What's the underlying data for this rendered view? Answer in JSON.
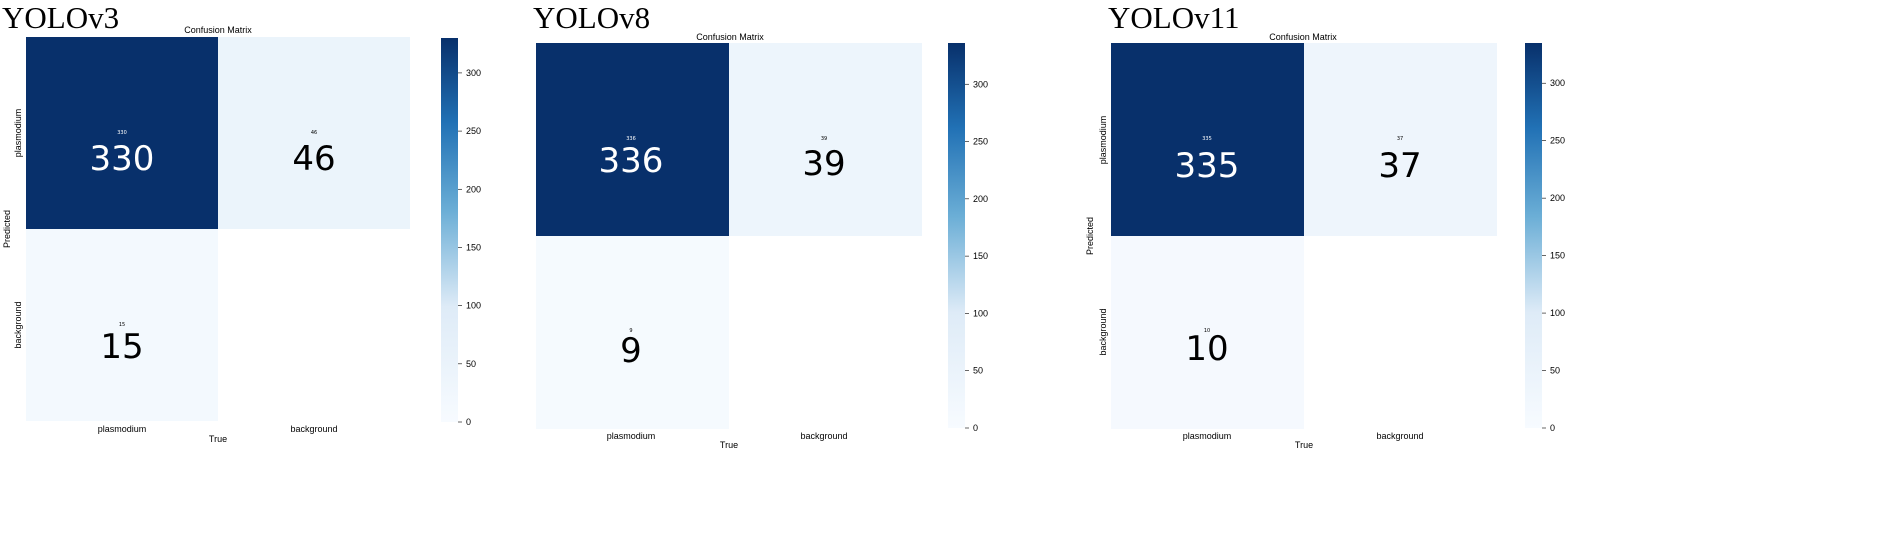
{
  "colors": {
    "low": "#f7fbff",
    "mid_low": "#deebf7",
    "mid": "#6baed6",
    "mid_high": "#2171b5",
    "high": "#08306b",
    "text_light": "#ffffff",
    "text_dark": "#000000"
  },
  "chart_data": [
    {
      "type": "heatmap",
      "model_title": "YOLOv3",
      "title": "Confusion Matrix",
      "xlabel": "True",
      "ylabel": "Predicted",
      "x_categories": [
        "plasmodium",
        "background"
      ],
      "y_categories": [
        "plasmodium",
        "background"
      ],
      "values": [
        [
          330,
          46
        ],
        [
          15,
          null
        ]
      ],
      "value_labels": [
        [
          "330",
          "46"
        ],
        [
          "15",
          ""
        ]
      ],
      "colorbar_range": [
        0,
        330
      ],
      "colorbar_ticks": [
        0,
        50,
        100,
        150,
        200,
        250,
        300
      ]
    },
    {
      "type": "heatmap",
      "model_title": "YOLOv8",
      "title": "Confusion Matrix",
      "xlabel": "True",
      "ylabel": "",
      "x_categories": [
        "plasmodium",
        "background"
      ],
      "y_categories": [
        "",
        ""
      ],
      "values": [
        [
          336,
          39
        ],
        [
          9,
          null
        ]
      ],
      "value_labels": [
        [
          "336",
          "39"
        ],
        [
          "9",
          ""
        ]
      ],
      "colorbar_range": [
        0,
        336
      ],
      "colorbar_ticks": [
        0,
        50,
        100,
        150,
        200,
        250,
        300
      ]
    },
    {
      "type": "heatmap",
      "model_title": "YOLOv11",
      "title": "Confusion Matrix",
      "xlabel": "True",
      "ylabel": "Predicted",
      "x_categories": [
        "plasmodium",
        "background"
      ],
      "y_categories": [
        "plasmodium",
        "background"
      ],
      "values": [
        [
          335,
          37
        ],
        [
          10,
          null
        ]
      ],
      "value_labels": [
        [
          "335",
          "37"
        ],
        [
          "10",
          ""
        ]
      ],
      "colorbar_range": [
        0,
        335
      ],
      "colorbar_ticks": [
        0,
        50,
        100,
        150,
        200,
        250,
        300
      ]
    }
  ]
}
